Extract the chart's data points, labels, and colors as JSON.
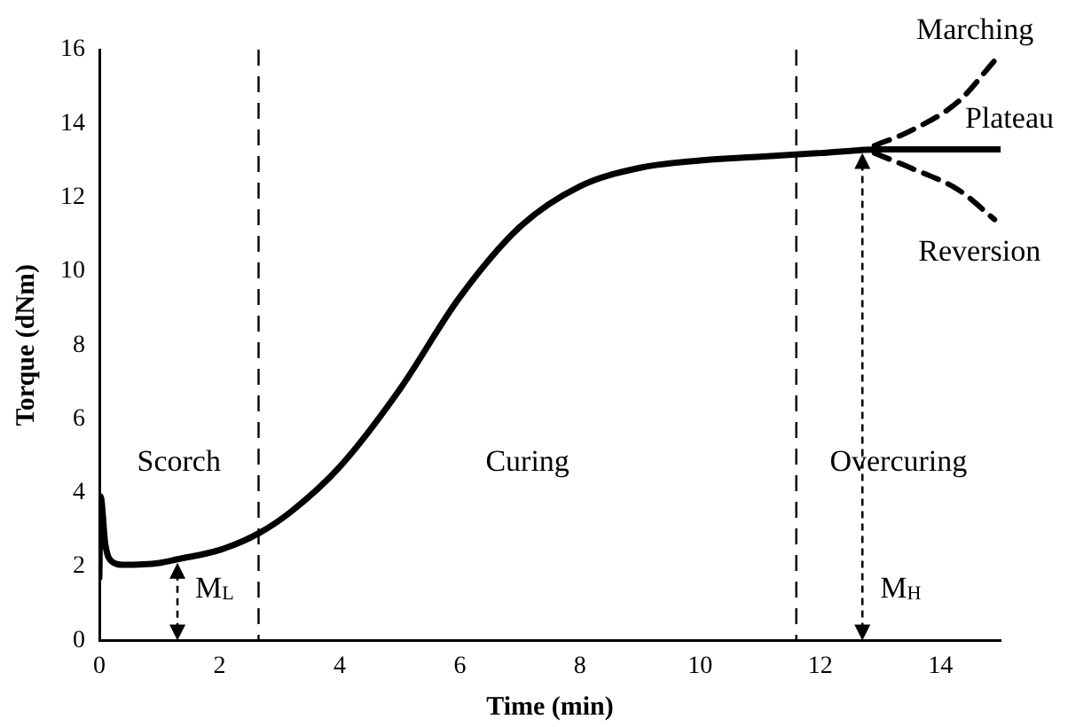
{
  "chart_data": {
    "type": "line",
    "xlabel": "Time (min)",
    "ylabel": "Torque (dNm)",
    "xlim": [
      0,
      15
    ],
    "xticks": [
      0,
      2,
      4,
      6,
      8,
      10,
      12,
      14
    ],
    "ylim": [
      0,
      16
    ],
    "yticks": [
      0,
      2,
      4,
      6,
      8,
      10,
      12,
      14,
      16
    ],
    "grid": false,
    "legend": false,
    "marker": "none",
    "series": [
      {
        "name": "Plateau",
        "color": "#000000",
        "line_style": "solid",
        "x": [
          0,
          0.02,
          0.1,
          0.2,
          0.4,
          1,
          1.3,
          2,
          2.65,
          3.2,
          4,
          5,
          6,
          7,
          8,
          9,
          10,
          11,
          12,
          13,
          14,
          15
        ],
        "values": [
          1.7,
          3.9,
          2.6,
          2.15,
          2.05,
          2.1,
          2.2,
          2.45,
          2.9,
          3.5,
          4.7,
          6.8,
          9.3,
          11.2,
          12.3,
          12.8,
          13,
          13.1,
          13.2,
          13.3,
          13.3,
          13.3
        ]
      },
      {
        "name": "Marching",
        "color": "#000000",
        "line_style": "dashed",
        "x": [
          12.9,
          13.5,
          14.3,
          14.9
        ],
        "values": [
          13.4,
          13.8,
          14.6,
          15.7
        ]
      },
      {
        "name": "Reversion",
        "color": "#000000",
        "line_style": "dashed",
        "x": [
          12.9,
          13.5,
          14.3,
          14.9
        ],
        "values": [
          13.2,
          12.8,
          12.2,
          11.4
        ]
      }
    ],
    "ref_lines": [
      {
        "axis": "x",
        "value": 2.65,
        "line_style": "dashed"
      },
      {
        "axis": "x",
        "value": 11.6,
        "line_style": "dashed"
      }
    ],
    "annotations": [
      "Scorch",
      "Curing",
      "Overcuring",
      {
        "text": "M$_{L}$",
        "x": 1.3,
        "y": 2.2
      },
      {
        "text": "M$_{H}$",
        "x": 12.7,
        "y": 13.3
      }
    ]
  }
}
